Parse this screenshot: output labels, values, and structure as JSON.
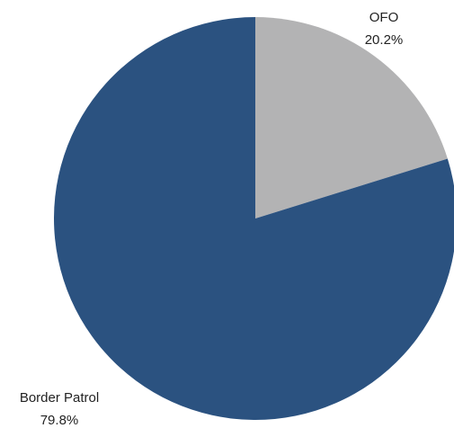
{
  "chart_data": {
    "type": "pie",
    "title": "",
    "start_angle_deg": 0,
    "direction": "clockwise",
    "slices": [
      {
        "name": "OFO",
        "value": 20.2,
        "label": "20.2%",
        "color": "#b3b3b4"
      },
      {
        "name": "Border Patrol",
        "value": 79.8,
        "label": "79.8%",
        "color": "#2b5280"
      }
    ]
  }
}
